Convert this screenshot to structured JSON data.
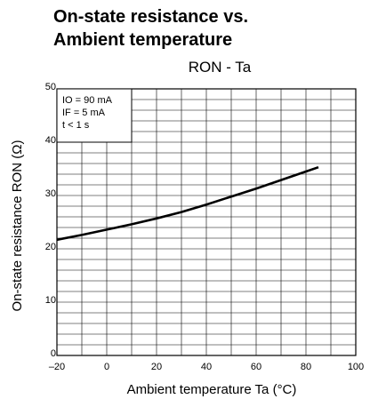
{
  "title_lines": [
    "On-state resistance vs.",
    "Ambient temperature"
  ],
  "chart_data": {
    "type": "line",
    "title": "On-state resistance vs. Ambient temperature",
    "subtitle": "RON - Ta",
    "xlabel": "Ambient temperature Ta (°C)",
    "ylabel": "On-state resistance RON (Ω)",
    "xlim": [
      -20,
      100
    ],
    "ylim": [
      0,
      50
    ],
    "x_ticks": [
      "-20",
      "0",
      "20",
      "40",
      "60",
      "80",
      "100"
    ],
    "y_ticks": [
      "0",
      "10",
      "20",
      "30",
      "40",
      "50"
    ],
    "grid": true,
    "legend_lines": [
      "IO = 90 mA",
      "IF = 5 mA",
      "t < 1 s"
    ],
    "series": [
      {
        "x": [
          -20,
          -10,
          0,
          10,
          20,
          30,
          40,
          50,
          60,
          70,
          80,
          85
        ],
        "y": [
          21.7,
          22.6,
          23.6,
          24.6,
          25.7,
          26.9,
          28.3,
          29.8,
          31.3,
          32.9,
          34.5,
          35.3
        ]
      }
    ]
  }
}
